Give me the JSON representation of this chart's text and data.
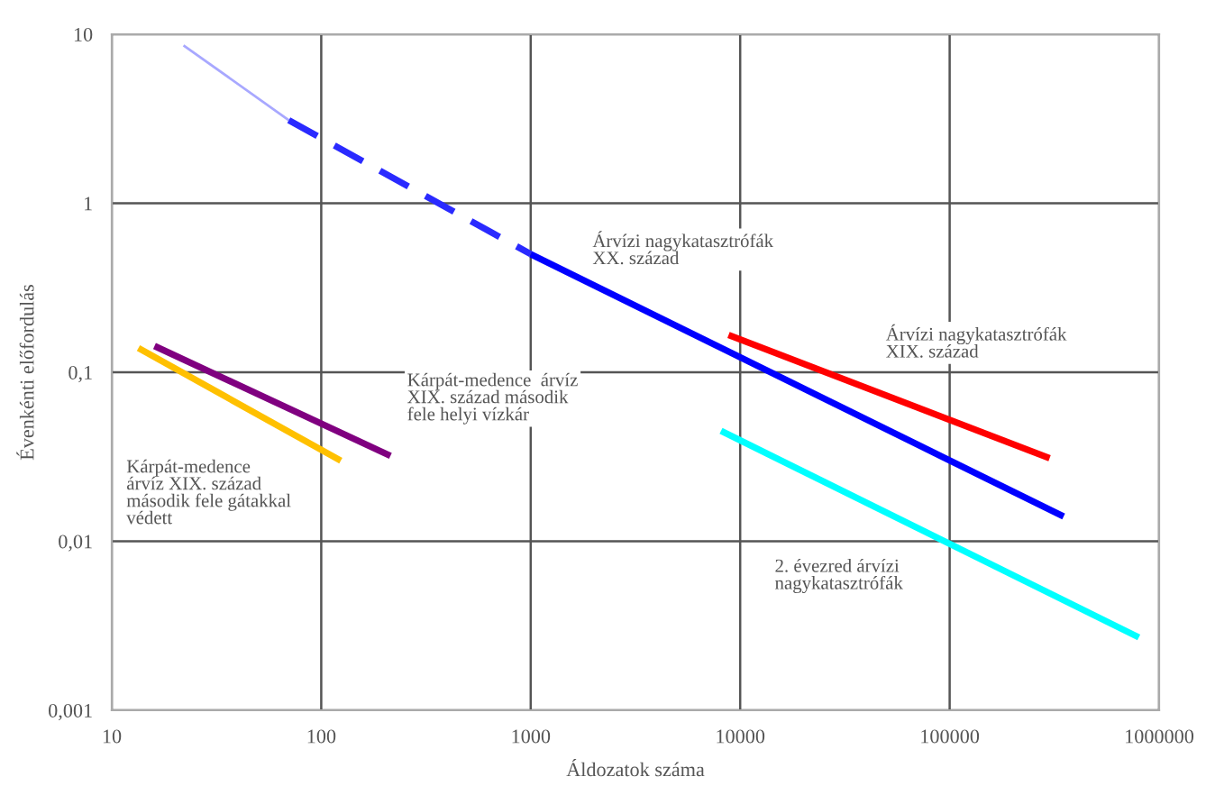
{
  "chart_data": {
    "type": "line",
    "log": "xy",
    "xlabel": "Áldozatok száma",
    "ylabel": "Évenkénti előfordulás",
    "xlim": [
      10,
      1000000
    ],
    "ylim": [
      0.001,
      10
    ],
    "xticks": [
      10,
      100,
      1000,
      10000,
      100000,
      1000000
    ],
    "yticks": [
      {
        "value": 0.001,
        "label": "0,001"
      },
      {
        "value": 0.01,
        "label": "0,01"
      },
      {
        "value": 0.1,
        "label": "0,1"
      },
      {
        "value": 1,
        "label": "1"
      },
      {
        "value": 10,
        "label": "10"
      }
    ],
    "grid": true,
    "marker": "none",
    "series": [
      {
        "color": "#a8a8ff",
        "line_style": "solid",
        "x": [
          22,
          70
        ],
        "values": [
          8.6,
          3.1
        ]
      },
      {
        "color": "#2a2aff",
        "line_style": "dashed",
        "x": [
          70,
          1000
        ],
        "values": [
          3.1,
          0.5
        ]
      },
      {
        "color": "#0000ff",
        "line_style": "solid",
        "x": [
          1000,
          350000
        ],
        "values": [
          0.5,
          0.014
        ]
      },
      {
        "color": "#ff0000",
        "line_style": "solid",
        "x": [
          8800,
          300000
        ],
        "values": [
          0.166,
          0.031
        ]
      },
      {
        "color": "#00ffff",
        "line_style": "solid",
        "x": [
          8100,
          800000
        ],
        "values": [
          0.045,
          0.0027
        ]
      },
      {
        "color": "#800080",
        "line_style": "solid",
        "x": [
          16,
          214
        ],
        "values": [
          0.143,
          0.032
        ]
      },
      {
        "color": "#ffc000",
        "line_style": "solid",
        "x": [
          13.4,
          124
        ],
        "values": [
          0.139,
          0.03
        ]
      }
    ],
    "annotations": [
      "Árvízi nagykatasztrófák\nXX. század",
      "Árvízi nagykatasztrófák\nXIX. század",
      "Kárpát-medence  árvíz\nXIX. század második\nfele helyi vízkár",
      "Kárpát-medence\nárvíz XIX. század\nmásodik fele gátakkal\nvédett",
      "2. évezred árvízi\nnagykatasztrófák"
    ]
  }
}
